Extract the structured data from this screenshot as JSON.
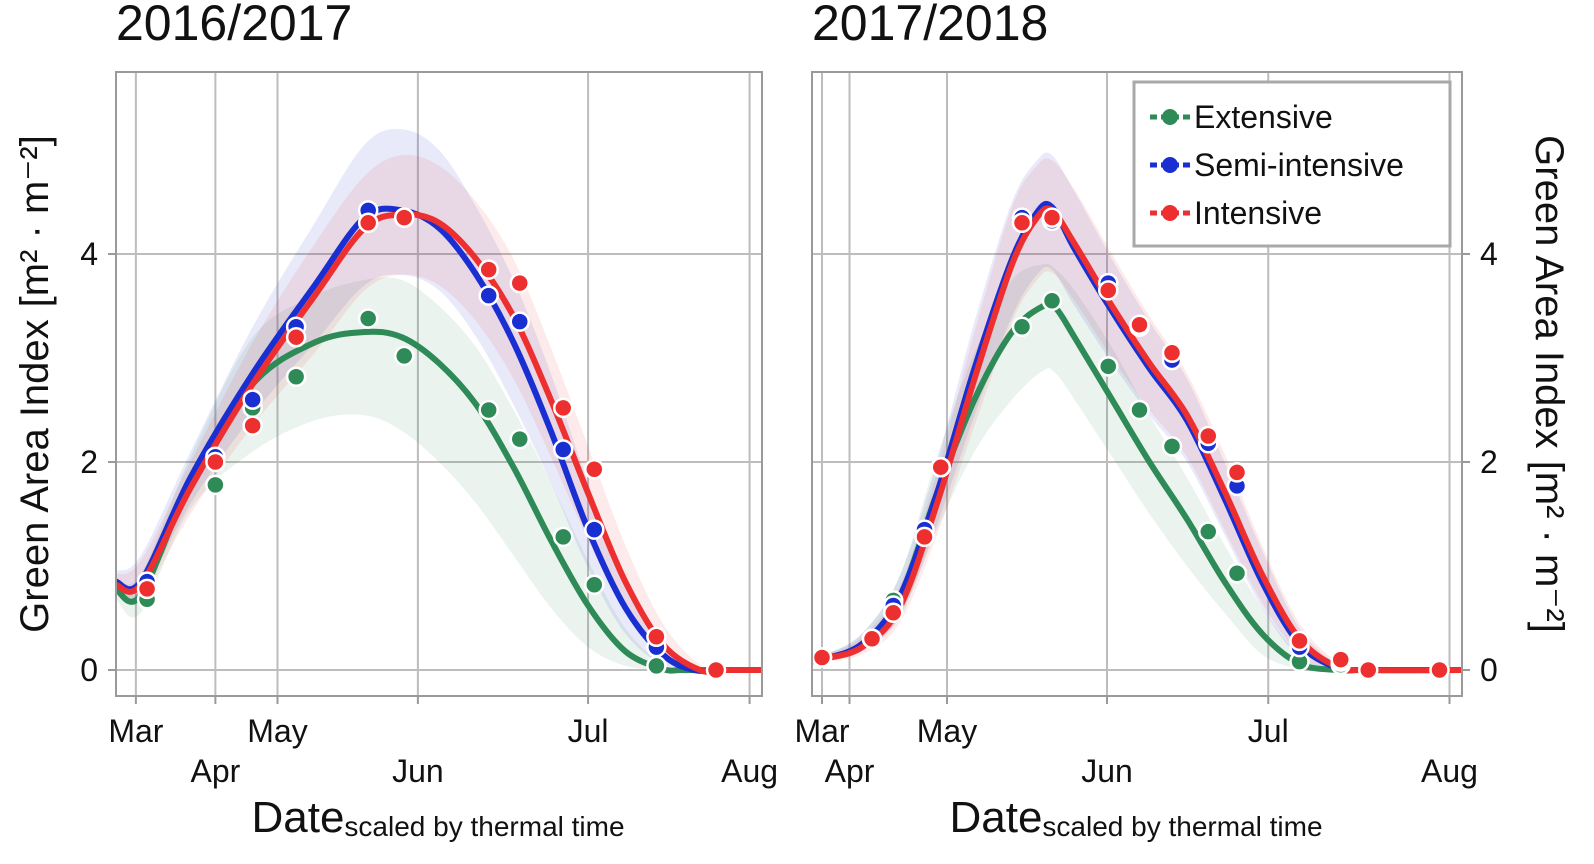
{
  "colors": {
    "extensive": "#2e8b57",
    "semi_intensive": "#1a2fd1",
    "intensive": "#ee2f2f",
    "grid": "#bdbdbd",
    "frame": "#9a9a9a"
  },
  "chart_data": [
    {
      "type": "line",
      "title": "2016/2017",
      "xlabel": "Date",
      "xlabel_sub": "scaled by thermal time",
      "ylabel": "Green Area Index",
      "ylabel_unit": "[m² · m⁻²]",
      "ylim": [
        -0.25,
        5.75
      ],
      "xlim": [
        -0.1,
        5.1
      ],
      "yticks": [
        0,
        2,
        4
      ],
      "yticklabels": [
        "0",
        "2",
        "4"
      ],
      "month_ticks": [
        {
          "label": "Mar",
          "x": 0.06,
          "row": 0
        },
        {
          "label": "Apr",
          "x": 0.7,
          "row": 1
        },
        {
          "label": "May",
          "x": 1.2,
          "row": 0
        },
        {
          "label": "Jun",
          "x": 2.33,
          "row": 1
        },
        {
          "label": "Jul",
          "x": 3.7,
          "row": 0
        },
        {
          "label": "Aug",
          "x": 5.0,
          "row": 1
        }
      ],
      "series": [
        {
          "name": "Extensive",
          "key": "extensive",
          "curve_x": [
            -0.1,
            0.1,
            0.5,
            1.0,
            1.5,
            1.9,
            2.2,
            2.5,
            2.8,
            3.1,
            3.4,
            3.7,
            4.0,
            4.3,
            4.45,
            4.6,
            5.1
          ],
          "curve_y": [
            0.78,
            0.72,
            1.8,
            2.75,
            3.15,
            3.25,
            3.2,
            2.95,
            2.55,
            1.95,
            1.25,
            0.62,
            0.18,
            0.01,
            0.0,
            0.0,
            0.0
          ],
          "band_lo": [
            0.68,
            0.55,
            1.55,
            2.1,
            2.4,
            2.45,
            2.3,
            2.0,
            1.6,
            1.1,
            0.6,
            0.22,
            0.04,
            0.0,
            0.0,
            0.0,
            0.0
          ],
          "band_hi": [
            0.88,
            0.92,
            2.05,
            3.2,
            3.6,
            3.75,
            3.75,
            3.5,
            3.1,
            2.5,
            1.8,
            1.05,
            0.4,
            0.05,
            0.0,
            0.0,
            0.0
          ],
          "points_x": [
            0.15,
            0.7,
            1.0,
            1.35,
            1.93,
            2.22,
            2.9,
            3.15,
            3.5,
            3.75,
            4.25
          ],
          "points_y": [
            0.68,
            1.78,
            2.52,
            2.82,
            3.38,
            3.02,
            2.5,
            2.22,
            1.28,
            0.82,
            0.04
          ]
        },
        {
          "name": "Semi-intensive",
          "key": "semi_intensive",
          "curve_x": [
            -0.1,
            0.1,
            0.5,
            1.0,
            1.5,
            1.9,
            2.2,
            2.5,
            2.8,
            3.1,
            3.4,
            3.7,
            4.0,
            4.3,
            4.55,
            4.8,
            5.1
          ],
          "curve_y": [
            0.85,
            0.85,
            1.85,
            2.85,
            3.7,
            4.35,
            4.42,
            4.25,
            3.8,
            3.15,
            2.3,
            1.35,
            0.6,
            0.15,
            0.0,
            0.0,
            0.0
          ],
          "band_lo": [
            0.75,
            0.72,
            1.6,
            2.45,
            3.15,
            3.7,
            3.8,
            3.65,
            3.2,
            2.55,
            1.8,
            0.98,
            0.35,
            0.05,
            0.0,
            0.0,
            0.0
          ],
          "band_hi": [
            0.95,
            1.1,
            2.1,
            3.3,
            4.3,
            5.05,
            5.2,
            5.0,
            4.45,
            3.75,
            2.85,
            1.8,
            0.9,
            0.3,
            0.02,
            0.0,
            0.0
          ],
          "points_x": [
            0.15,
            0.7,
            1.0,
            1.35,
            1.93,
            2.22,
            2.9,
            3.15,
            3.5,
            3.75,
            4.25
          ],
          "points_y": [
            0.85,
            2.05,
            2.6,
            3.3,
            4.42,
            4.35,
            3.6,
            3.35,
            2.12,
            1.35,
            0.22
          ]
        },
        {
          "name": "Intensive",
          "key": "intensive",
          "curve_x": [
            -0.1,
            0.1,
            0.5,
            1.0,
            1.5,
            1.9,
            2.2,
            2.5,
            2.8,
            3.1,
            3.4,
            3.7,
            4.0,
            4.3,
            4.6,
            4.8,
            5.1
          ],
          "curve_y": [
            0.82,
            0.82,
            1.75,
            2.75,
            3.6,
            4.25,
            4.38,
            4.3,
            3.95,
            3.4,
            2.6,
            1.7,
            0.85,
            0.25,
            0.0,
            0.0,
            0.0
          ],
          "band_lo": [
            0.72,
            0.68,
            1.5,
            2.35,
            3.05,
            3.65,
            3.8,
            3.7,
            3.35,
            2.8,
            2.05,
            1.25,
            0.55,
            0.1,
            0.0,
            0.0,
            0.0
          ],
          "band_hi": [
            0.92,
            1.05,
            2.0,
            3.15,
            4.1,
            4.75,
            4.95,
            4.85,
            4.5,
            3.95,
            3.1,
            2.15,
            1.2,
            0.45,
            0.05,
            0.0,
            0.0
          ],
          "points_x": [
            0.15,
            0.7,
            1.0,
            1.35,
            1.93,
            2.22,
            2.9,
            3.15,
            3.5,
            3.75,
            4.25,
            4.73
          ],
          "points_y": [
            0.78,
            2.0,
            2.35,
            3.2,
            4.3,
            4.35,
            3.85,
            3.72,
            2.52,
            1.93,
            0.32,
            0.0
          ]
        }
      ]
    },
    {
      "type": "line",
      "title": "2017/2018",
      "xlabel": "Date",
      "xlabel_sub": "scaled by thermal time",
      "ylabel": "Green Area Index",
      "ylabel_unit": "[m² · m⁻²]",
      "ylim": [
        -0.25,
        5.75
      ],
      "xlim": [
        -0.1,
        5.1
      ],
      "yticks": [
        0,
        2,
        4
      ],
      "yticklabels": [
        "0",
        "2",
        "4"
      ],
      "month_ticks": [
        {
          "label": "Mar",
          "x": -0.02,
          "row": 0
        },
        {
          "label": "Apr",
          "x": 0.2,
          "row": 1
        },
        {
          "label": "May",
          "x": 0.98,
          "row": 0
        },
        {
          "label": "Jun",
          "x": 2.26,
          "row": 1
        },
        {
          "label": "Jul",
          "x": 3.55,
          "row": 0
        },
        {
          "label": "Aug",
          "x": 5.0,
          "row": 1
        }
      ],
      "series": [
        {
          "name": "Extensive",
          "key": "extensive",
          "curve_x": [
            -0.1,
            0.0,
            0.3,
            0.6,
            0.9,
            1.2,
            1.5,
            1.75,
            1.85,
            2.0,
            2.3,
            2.6,
            2.9,
            3.2,
            3.5,
            3.8,
            4.1,
            4.3,
            5.1
          ],
          "curve_y": [
            0.1,
            0.11,
            0.25,
            0.7,
            1.7,
            2.6,
            3.25,
            3.5,
            3.48,
            3.2,
            2.6,
            2.0,
            1.45,
            0.85,
            0.35,
            0.06,
            0.0,
            0.0,
            0.0
          ],
          "band_lo": [
            0.05,
            0.08,
            0.18,
            0.5,
            1.35,
            2.1,
            2.6,
            2.88,
            2.85,
            2.6,
            2.05,
            1.5,
            1.0,
            0.55,
            0.15,
            0.01,
            0.0,
            0.0,
            0.0
          ],
          "band_hi": [
            0.15,
            0.15,
            0.35,
            0.9,
            2.05,
            3.05,
            3.75,
            3.9,
            3.85,
            3.65,
            3.1,
            2.45,
            1.85,
            1.2,
            0.6,
            0.15,
            0.0,
            0.0,
            0.0
          ],
          "points_x": [
            -0.02,
            0.38,
            0.55,
            0.93,
            1.58,
            1.82,
            2.27,
            2.52,
            2.78,
            3.07,
            3.3,
            3.8,
            4.13
          ],
          "points_y": [
            0.12,
            0.3,
            0.67,
            1.95,
            3.3,
            3.55,
            2.92,
            2.5,
            2.15,
            1.33,
            0.93,
            0.08,
            0.05
          ]
        },
        {
          "name": "Semi-intensive",
          "key": "semi_intensive",
          "curve_x": [
            -0.1,
            0.0,
            0.3,
            0.6,
            0.9,
            1.2,
            1.5,
            1.7,
            1.82,
            2.0,
            2.3,
            2.6,
            2.9,
            3.2,
            3.5,
            3.8,
            4.1,
            4.3,
            5.1
          ],
          "curve_y": [
            0.1,
            0.11,
            0.25,
            0.7,
            1.7,
            2.9,
            3.95,
            4.4,
            4.45,
            4.05,
            3.45,
            2.9,
            2.4,
            1.65,
            0.85,
            0.25,
            0.02,
            0.0,
            0.0
          ],
          "band_lo": [
            0.05,
            0.08,
            0.18,
            0.52,
            1.4,
            2.45,
            3.4,
            3.8,
            3.85,
            3.5,
            2.95,
            2.45,
            2.0,
            1.3,
            0.6,
            0.12,
            0.0,
            0.0,
            0.0
          ],
          "band_hi": [
            0.15,
            0.15,
            0.35,
            0.9,
            2.0,
            3.35,
            4.5,
            4.9,
            4.95,
            4.6,
            3.95,
            3.35,
            2.8,
            2.0,
            1.15,
            0.4,
            0.06,
            0.0,
            0.0
          ],
          "points_x": [
            -0.02,
            0.38,
            0.55,
            0.8,
            0.93,
            1.58,
            1.82,
            2.27,
            2.52,
            2.78,
            3.07,
            3.3,
            3.8,
            4.13
          ],
          "points_y": [
            0.12,
            0.3,
            0.62,
            1.35,
            1.95,
            4.35,
            4.32,
            3.72,
            3.3,
            2.98,
            2.18,
            1.77,
            0.22,
            0.08
          ]
        },
        {
          "name": "Intensive",
          "key": "intensive",
          "curve_x": [
            -0.1,
            0.0,
            0.3,
            0.6,
            0.9,
            1.2,
            1.5,
            1.7,
            1.82,
            2.0,
            2.3,
            2.6,
            2.9,
            3.2,
            3.5,
            3.8,
            4.1,
            4.3,
            5.1
          ],
          "curve_y": [
            0.1,
            0.11,
            0.22,
            0.6,
            1.6,
            2.8,
            3.9,
            4.35,
            4.42,
            4.1,
            3.5,
            2.95,
            2.45,
            1.72,
            0.92,
            0.3,
            0.03,
            0.0,
            0.0
          ],
          "band_lo": [
            0.05,
            0.08,
            0.15,
            0.45,
            1.3,
            2.35,
            3.35,
            3.75,
            3.82,
            3.55,
            3.0,
            2.5,
            2.05,
            1.35,
            0.65,
            0.15,
            0.0,
            0.0,
            0.0
          ],
          "band_hi": [
            0.15,
            0.15,
            0.32,
            0.8,
            1.9,
            3.25,
            4.45,
            4.85,
            4.9,
            4.62,
            4.0,
            3.4,
            2.85,
            2.08,
            1.2,
            0.45,
            0.08,
            0.0,
            0.0
          ],
          "points_x": [
            -0.02,
            0.38,
            0.55,
            0.8,
            0.93,
            1.58,
            1.82,
            2.27,
            2.52,
            2.78,
            3.07,
            3.3,
            3.8,
            4.13,
            4.35,
            4.92
          ],
          "points_y": [
            0.12,
            0.3,
            0.55,
            1.28,
            1.95,
            4.3,
            4.35,
            3.65,
            3.32,
            3.05,
            2.25,
            1.9,
            0.28,
            0.1,
            0.0,
            0.0
          ]
        }
      ],
      "legend": {
        "position": "top-right",
        "entries": [
          "Extensive",
          "Semi-intensive",
          "Intensive"
        ]
      }
    }
  ]
}
